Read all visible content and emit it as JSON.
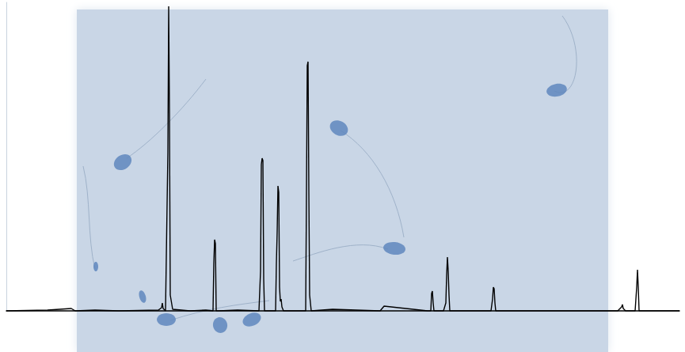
{
  "chart_data": {
    "type": "line",
    "color": "#000000",
    "tick_labels": false,
    "grid": false,
    "xlim": [
      8,
      858
    ],
    "ylim": [
      0,
      390
    ],
    "xticks": [],
    "yticks": [],
    "x": [
      8,
      60,
      90,
      95,
      120,
      150,
      200,
      204,
      205,
      206,
      209,
      211,
      212,
      213,
      214,
      215,
      218,
      240,
      260,
      269,
      270,
      271,
      272,
      273,
      276,
      300,
      327,
      329,
      330,
      331,
      332,
      333,
      334,
      336,
      348,
      349,
      350,
      351,
      352,
      353,
      354,
      355,
      356,
      358,
      370,
      386,
      387,
      388,
      389,
      390,
      391,
      393,
      420,
      480,
      485,
      540,
      544,
      545,
      546,
      547,
      548,
      560,
      563,
      564,
      565,
      566,
      567,
      568,
      570,
      620,
      622,
      623,
      624,
      625,
      626,
      628,
      700,
      780,
      783,
      785,
      786,
      787,
      790,
      802,
      804,
      805,
      806,
      807,
      808,
      810,
      858
    ],
    "values": [
      0,
      1,
      3,
      0,
      1,
      0,
      1,
      4,
      10,
      3,
      0,
      135,
      200,
      385,
      250,
      20,
      2,
      0,
      1,
      0,
      60,
      90,
      85,
      0,
      0,
      1,
      0,
      50,
      185,
      193,
      190,
      40,
      0,
      0,
      0,
      60,
      100,
      158,
      150,
      30,
      12,
      15,
      5,
      0,
      0,
      0,
      150,
      310,
      315,
      150,
      20,
      0,
      2,
      0,
      6,
      0,
      0,
      22,
      25,
      10,
      0,
      0,
      10,
      45,
      68,
      50,
      20,
      0,
      0,
      0,
      15,
      30,
      28,
      10,
      0,
      0,
      0,
      0,
      3,
      5,
      8,
      3,
      0,
      0,
      30,
      52,
      30,
      0,
      0,
      0,
      0
    ]
  }
}
